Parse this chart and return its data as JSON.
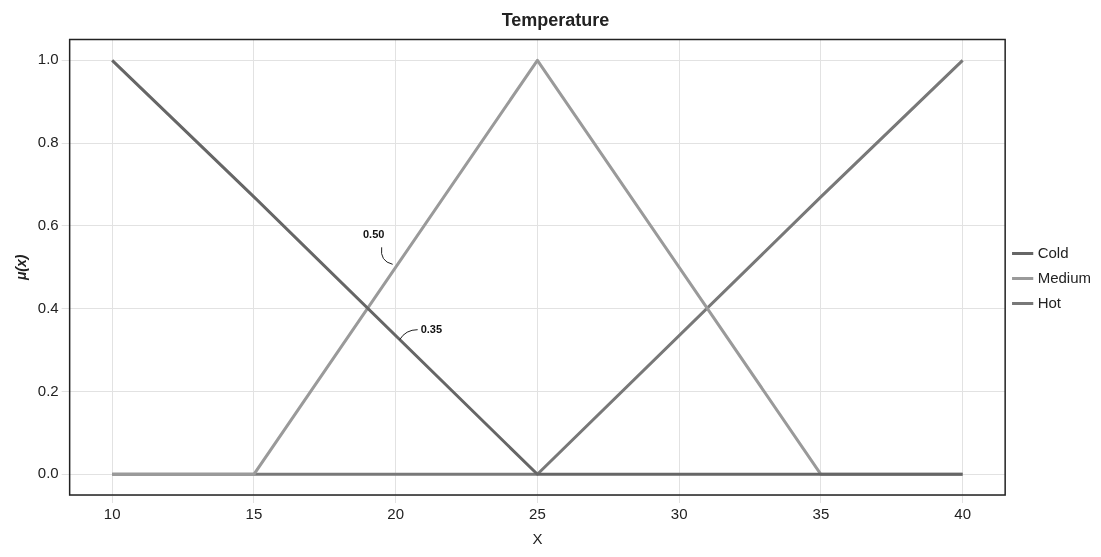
{
  "chart_data": {
    "type": "line",
    "title": "Temperature",
    "xlabel": "X",
    "ylabel": "μ(x)",
    "x": [
      10,
      15,
      25,
      35,
      40
    ],
    "series": [
      {
        "name": "Cold",
        "color": "#666666",
        "values": [
          1,
          0.67,
          0,
          0,
          0
        ]
      },
      {
        "name": "Medium",
        "color": "#9a9a9a",
        "values": [
          0,
          0,
          1,
          0,
          0
        ]
      },
      {
        "name": "Hot",
        "color": "#787878",
        "values": [
          0,
          0,
          0,
          0.67,
          1
        ]
      }
    ],
    "xlim": [
      8.5,
      41.5
    ],
    "xticks": [
      10,
      15,
      20,
      25,
      30,
      35,
      40
    ],
    "ylim": [
      -0.05,
      1.05
    ],
    "yticks": [
      {
        "value": 0,
        "label": "0.0"
      },
      {
        "value": 0.2,
        "label": "0.2"
      },
      {
        "value": 0.4,
        "label": "0.4"
      },
      {
        "value": 0.6,
        "label": "0.6"
      },
      {
        "value": 0.8,
        "label": "0.8"
      },
      {
        "value": 1,
        "label": "1.0"
      }
    ],
    "annotations": [
      {
        "text": "0.50",
        "x": 20,
        "y": 0.5
      },
      {
        "text": "0.35",
        "x": 20,
        "y": 0.33
      }
    ],
    "grid": true,
    "legend": "right",
    "marker": "none",
    "line_style": "solid"
  }
}
